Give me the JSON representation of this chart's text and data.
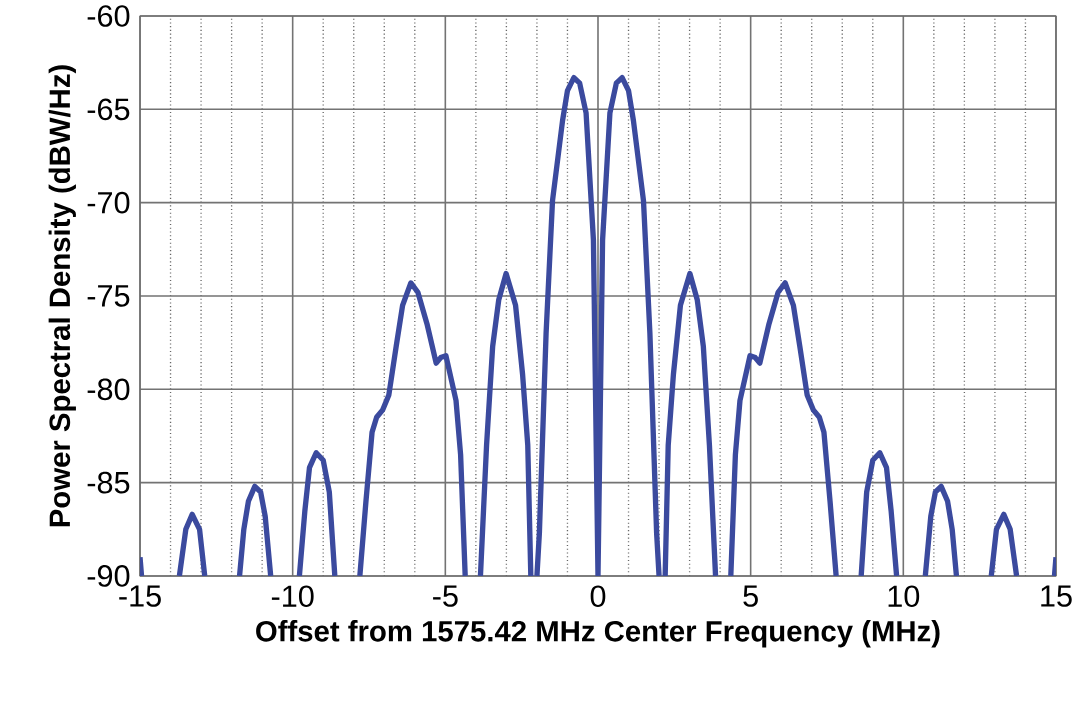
{
  "chart_data": {
    "type": "line",
    "xlabel": "Offset from 1575.42 MHz Center Frequency (MHz)",
    "ylabel": "Power Spectral Density (dBW/Hz)",
    "xlim": [
      -15,
      15
    ],
    "ylim": [
      -90,
      -60
    ],
    "xticks": [
      -15,
      -10,
      -5,
      0,
      5,
      10,
      15
    ],
    "yticks": [
      -90,
      -85,
      -80,
      -75,
      -70,
      -65,
      -60
    ],
    "grid": true,
    "marker": "none",
    "line_style": "solid",
    "series": [
      {
        "color": "#3b4a9e",
        "x": [
          -15,
          -14.95,
          -14.3,
          -13.71,
          -13.5,
          -13.29,
          -13.05,
          -12.88,
          -12.3,
          -11.74,
          -11.6,
          -11.45,
          -11.24,
          -11.05,
          -10.9,
          -10.72,
          -10.2,
          -9.78,
          -9.6,
          -9.45,
          -9.23,
          -9.0,
          -8.8,
          -8.62,
          -8.2,
          -7.8,
          -7.6,
          -7.4,
          -7.25,
          -7.05,
          -6.85,
          -6.61,
          -6.4,
          -6.13,
          -5.9,
          -5.6,
          -5.3,
          -5.15,
          -4.98,
          -4.65,
          -4.5,
          -4.35,
          -4.1,
          -3.85,
          -3.65,
          -3.45,
          -3.25,
          -3.01,
          -2.7,
          -2.47,
          -2.3,
          -2.2,
          -2.1,
          -2.0,
          -1.92,
          -1.7,
          -1.49,
          -1.16,
          -1.0,
          -0.79,
          -0.6,
          -0.39,
          -0.15,
          0,
          0.15,
          0.39,
          0.6,
          0.79,
          1.0,
          1.16,
          1.49,
          1.7,
          1.92,
          2.0,
          2.1,
          2.2,
          2.3,
          2.47,
          2.7,
          3.01,
          3.25,
          3.45,
          3.65,
          3.85,
          4.1,
          4.35,
          4.5,
          4.65,
          4.98,
          5.15,
          5.3,
          5.6,
          5.9,
          6.13,
          6.4,
          6.61,
          6.85,
          7.05,
          7.25,
          7.4,
          7.6,
          7.8,
          8.2,
          8.62,
          8.8,
          9.0,
          9.23,
          9.45,
          9.6,
          9.78,
          10.2,
          10.72,
          10.9,
          11.05,
          11.24,
          11.45,
          11.6,
          11.74,
          12.3,
          12.88,
          13.05,
          13.29,
          13.5,
          13.71,
          14.3,
          14.95,
          15
        ],
        "values": [
          -89,
          -90,
          null,
          -90,
          -87.5,
          -86.7,
          -87.5,
          -90,
          null,
          -90,
          -87.5,
          -86,
          -85.2,
          -85.5,
          -86.8,
          -90,
          null,
          -90,
          -86.5,
          -84.2,
          -83.4,
          -83.8,
          -85.5,
          -90,
          null,
          -90,
          -86,
          -82.3,
          -81.5,
          -81.1,
          -80.3,
          -77.7,
          -75.5,
          -74.3,
          -74.8,
          -76.5,
          -78.6,
          -78.3,
          -78.2,
          -80.6,
          -83.5,
          -90,
          null,
          -90,
          -83,
          -77.7,
          -75.2,
          -73.8,
          -75.5,
          -79.2,
          -83,
          -90,
          null,
          -90,
          -87.7,
          -77,
          -69.9,
          -65.6,
          -64,
          -63.3,
          -63.6,
          -65.2,
          -72,
          -90,
          -72,
          -65.2,
          -63.6,
          -63.3,
          -64,
          -65.6,
          -69.9,
          -77,
          -87.7,
          -90,
          null,
          -90,
          -83,
          -79.2,
          -75.5,
          -73.8,
          -75.2,
          -77.7,
          -83,
          -90,
          null,
          -90,
          -83.5,
          -80.6,
          -78.2,
          -78.3,
          -78.6,
          -76.5,
          -74.8,
          -74.3,
          -75.5,
          -77.7,
          -80.3,
          -81.1,
          -81.5,
          -82.3,
          -86,
          -90,
          null,
          -90,
          -85.5,
          -83.8,
          -83.4,
          -84.2,
          -86.5,
          -90,
          null,
          -90,
          -86.8,
          -85.5,
          -85.2,
          -86,
          -87.5,
          -90,
          null,
          -90,
          -87.5,
          -86.7,
          -87.5,
          -90,
          null,
          -90,
          -89
        ]
      }
    ]
  }
}
